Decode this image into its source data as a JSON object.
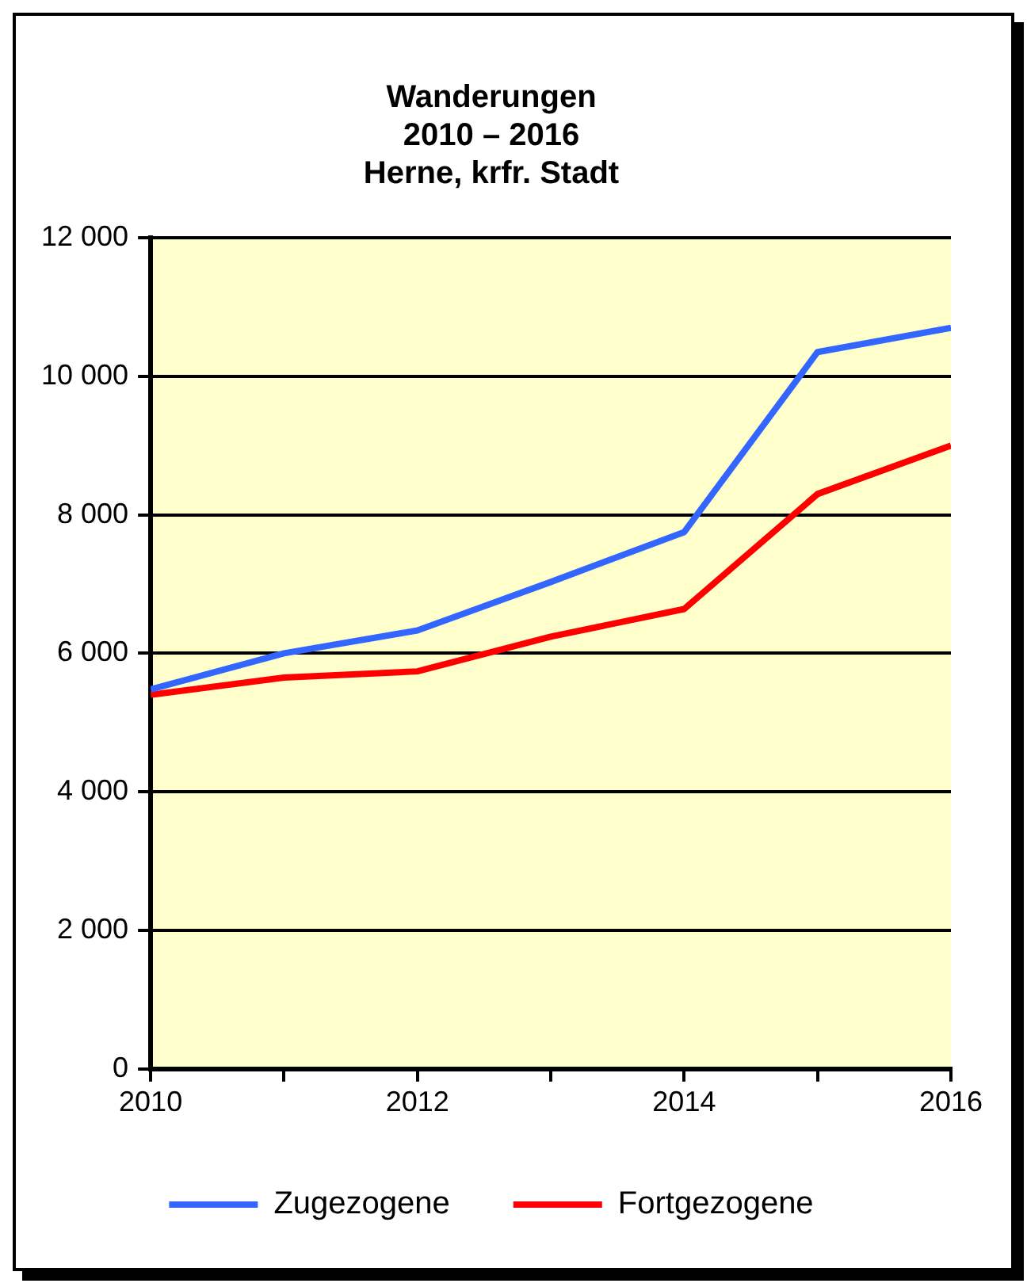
{
  "chart_data": {
    "type": "line",
    "title": "Wanderungen\n2010 – 2016\nHerne, krfr. Stadt",
    "x": [
      2010,
      2011,
      2012,
      2013,
      2014,
      2015,
      2016
    ],
    "series": [
      {
        "name": "Zugezogene",
        "color": "#3366ff",
        "values": [
          5480,
          6000,
          6330,
          7030,
          7750,
          10350,
          10700
        ]
      },
      {
        "name": "Fortgezogene",
        "color": "#ff0000",
        "values": [
          5400,
          5650,
          5740,
          6240,
          6640,
          8300,
          9000
        ]
      }
    ],
    "xlim": [
      2010,
      2016
    ],
    "xticks": [
      2010,
      {
        "value": 2011,
        "label": null
      },
      2012,
      {
        "value": 2013,
        "label": null
      },
      2014,
      {
        "value": 2015,
        "label": null
      },
      2016
    ],
    "ylim": [
      0,
      12000
    ],
    "yticks": [
      0,
      {
        "value": 2000,
        "label": "2 000"
      },
      {
        "value": 4000,
        "label": "4 000"
      },
      {
        "value": 6000,
        "label": "6 000"
      },
      {
        "value": 8000,
        "label": "8 000"
      },
      {
        "value": 10000,
        "label": "10 000"
      },
      {
        "value": 12000,
        "label": "12 000"
      }
    ],
    "grid": "y",
    "legend": "bottom",
    "marker": "none",
    "line_style": "solid"
  }
}
